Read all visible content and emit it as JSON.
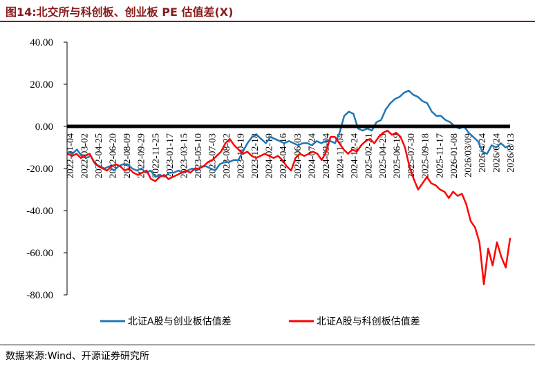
{
  "header": {
    "title": "图14:北交所与科创板、创业板 PE 估值差(X)"
  },
  "footer": {
    "source": "数据来源:Wind、开源证券研究所"
  },
  "colors": {
    "title": "#8a1a1a",
    "series_blue": "#1f77b4",
    "series_red": "#ff0000",
    "zero_line": "#000000"
  },
  "chart_data": {
    "type": "line",
    "title": "",
    "xlabel": "",
    "ylabel": "",
    "ylim": [
      -80,
      40
    ],
    "yticks": [
      "40.00",
      "20.00",
      "0.00",
      "-20.00",
      "-40.00",
      "-60.00",
      "-80.00"
    ],
    "xtick_labels": [
      "2022-01-04",
      "2022-03-02",
      "2022-04-25",
      "2022-06-20",
      "2022-08-09",
      "2022-09-29",
      "2022-11-25",
      "2023-01-17",
      "2023-03-15",
      "2023-05-10",
      "2023-07-03",
      "2023-08-22",
      "2023-10-19",
      "2023-12-18",
      "2024-02-19",
      "2024-04-16",
      "2024-06-03",
      "2024-07-24",
      "2024-09-04",
      "2024-11-04",
      "2024-12-24",
      "2025-02-21",
      "2025-04-25",
      "2025-06-19",
      "2025-07-30",
      "2025-09-18",
      "2025-11-17",
      "2026-01-08",
      "2026/03/09",
      "2026/4/24",
      "2026/6/24",
      "2026/8/13"
    ],
    "legend_position": "bottom",
    "grid": false,
    "series": [
      {
        "name": "北证A股与创业板估值差",
        "color": "#1f77b4",
        "values": [
          -12,
          -13,
          -11,
          -14,
          -15,
          -14,
          -18,
          -19,
          -20,
          -19,
          -21,
          -19,
          -18,
          -18,
          -20,
          -21,
          -20,
          -22,
          -21,
          -24,
          -23,
          -24,
          -22,
          -22,
          -21,
          -22,
          -21,
          -20,
          -21,
          -19,
          -19,
          -20,
          -21,
          -18,
          -17,
          -17,
          -16,
          -16,
          -12,
          -8,
          -5,
          -4,
          -6,
          -8,
          -5,
          -6,
          -7,
          -8,
          -7,
          -8,
          -9,
          -8,
          -8,
          -9,
          -7,
          -8,
          -7,
          -7,
          -8,
          -3,
          5,
          7,
          6,
          -1,
          -2,
          -1,
          -2,
          2,
          3,
          8,
          11,
          13,
          14,
          16,
          17,
          15,
          14,
          12,
          11,
          7,
          5,
          5,
          3,
          2,
          0,
          -1,
          0,
          -3,
          -5,
          -7,
          -12,
          -13,
          -9,
          -10,
          -8,
          -10,
          -9
        ]
      },
      {
        "name": "北证A股与科创板估值差",
        "color": "#ff0000",
        "values": [
          -13,
          -14,
          -13,
          -15,
          -14,
          -13,
          -17,
          -19,
          -20,
          -21,
          -19,
          -18,
          -19,
          -21,
          -20,
          -22,
          -23,
          -22,
          -21,
          -25,
          -26,
          -24,
          -23,
          -25,
          -24,
          -23,
          -22,
          -21,
          -22,
          -20,
          -20,
          -19,
          -17,
          -16,
          -14,
          -12,
          -8,
          -6,
          -9,
          -11,
          -13,
          -12,
          -14,
          -15,
          -14,
          -13,
          -14,
          -15,
          -14,
          -16,
          -19,
          -21,
          -15,
          -13,
          -14,
          -13,
          -12,
          -13,
          -16,
          -12,
          -5,
          -5,
          -8,
          -11,
          -13,
          -11,
          -12,
          -9,
          -7,
          -6,
          -8,
          -5,
          -3,
          -2,
          -4,
          -3,
          -5,
          -10,
          -19,
          -25,
          -30,
          -27,
          -24,
          -27,
          -28,
          -30,
          -31,
          -34,
          -31,
          -33,
          -32,
          -37,
          -45,
          -48,
          -55,
          -75,
          -58,
          -66,
          -55,
          -62,
          -67,
          -53
        ]
      }
    ]
  }
}
